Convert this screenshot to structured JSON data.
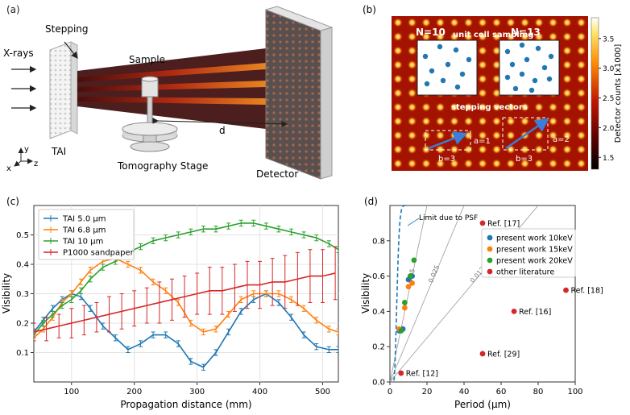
{
  "panel_a": {
    "label": "(a)",
    "labels": {
      "stepping": "Stepping",
      "xrays": "X-rays",
      "sample": "Sample",
      "tai": "TAI",
      "d": "d",
      "stage": "Tomography Stage",
      "detector": "Detector",
      "axis_x": "x",
      "axis_y": "y",
      "axis_z": "z"
    }
  },
  "panel_b": {
    "label": "(b)",
    "n10": "N=10",
    "n13": "N=13",
    "unit_cell": "unit cell sampling",
    "stepping_vectors": "stepping vectors",
    "a1": "a=1",
    "a2": "a=2",
    "b3_left": "b=3",
    "b3_right": "b=3",
    "colorbar": {
      "label": "Detector counts [x1000]",
      "ticks": [
        "3.5",
        "3.0",
        "2.5",
        "2.0",
        "1.5"
      ],
      "tick_values": [
        3.5,
        3.0,
        2.5,
        2.0,
        1.5
      ],
      "range": [
        1.3,
        3.85
      ]
    }
  },
  "chart_data": [
    {
      "panel": "(c)",
      "type": "line",
      "xlabel": "Propagation distance (mm)",
      "ylabel": "Visibility",
      "xlim": [
        40,
        525
      ],
      "ylim": [
        0.0,
        0.6
      ],
      "xticks": [
        100,
        200,
        300,
        400,
        500
      ],
      "yticks": [
        0.1,
        0.2,
        0.3,
        0.4,
        0.5
      ],
      "grid": true,
      "legend": "top-left",
      "series": [
        {
          "name": "TAI 5.0 μm",
          "color": "#1f77b4",
          "x": [
            40,
            55,
            70,
            85,
            100,
            115,
            130,
            150,
            170,
            190,
            210,
            230,
            250,
            270,
            290,
            310,
            330,
            350,
            370,
            390,
            410,
            430,
            450,
            470,
            490,
            510,
            525
          ],
          "y": [
            0.17,
            0.21,
            0.25,
            0.28,
            0.3,
            0.29,
            0.25,
            0.19,
            0.15,
            0.11,
            0.13,
            0.16,
            0.16,
            0.13,
            0.07,
            0.05,
            0.1,
            0.17,
            0.24,
            0.28,
            0.3,
            0.27,
            0.22,
            0.16,
            0.12,
            0.11,
            0.11
          ]
        },
        {
          "name": "TAI 6.8 μm",
          "color": "#ff7f0e",
          "x": [
            40,
            55,
            70,
            85,
            100,
            115,
            130,
            150,
            170,
            190,
            210,
            230,
            250,
            270,
            290,
            310,
            330,
            350,
            370,
            390,
            410,
            430,
            450,
            470,
            490,
            510,
            525
          ],
          "y": [
            0.15,
            0.18,
            0.22,
            0.27,
            0.3,
            0.34,
            0.38,
            0.41,
            0.42,
            0.4,
            0.38,
            0.34,
            0.31,
            0.27,
            0.2,
            0.17,
            0.18,
            0.23,
            0.28,
            0.3,
            0.3,
            0.3,
            0.28,
            0.25,
            0.21,
            0.18,
            0.17
          ]
        },
        {
          "name": "TAI 10 μm",
          "color": "#2ca02c",
          "x": [
            40,
            55,
            70,
            85,
            100,
            115,
            130,
            150,
            170,
            190,
            210,
            230,
            250,
            270,
            290,
            310,
            330,
            350,
            370,
            390,
            410,
            430,
            450,
            470,
            490,
            510,
            525
          ],
          "y": [
            0.16,
            0.2,
            0.23,
            0.26,
            0.28,
            0.31,
            0.35,
            0.39,
            0.41,
            0.44,
            0.46,
            0.48,
            0.49,
            0.5,
            0.51,
            0.52,
            0.52,
            0.53,
            0.54,
            0.54,
            0.53,
            0.52,
            0.51,
            0.5,
            0.49,
            0.47,
            0.45
          ]
        },
        {
          "name": "P1000 sandpaper",
          "color": "#d62728",
          "x": [
            40,
            60,
            80,
            100,
            120,
            140,
            160,
            180,
            200,
            220,
            240,
            260,
            280,
            300,
            320,
            340,
            360,
            380,
            400,
            420,
            440,
            460,
            480,
            500,
            520
          ],
          "y": [
            0.17,
            0.18,
            0.19,
            0.2,
            0.21,
            0.22,
            0.23,
            0.24,
            0.25,
            0.26,
            0.27,
            0.28,
            0.29,
            0.3,
            0.31,
            0.31,
            0.32,
            0.33,
            0.33,
            0.34,
            0.34,
            0.35,
            0.36,
            0.36,
            0.37
          ],
          "err": [
            0.03,
            0.04,
            0.04,
            0.05,
            0.05,
            0.05,
            0.06,
            0.06,
            0.06,
            0.06,
            0.07,
            0.07,
            0.07,
            0.07,
            0.08,
            0.08,
            0.08,
            0.08,
            0.08,
            0.08,
            0.09,
            0.09,
            0.09,
            0.09,
            0.09
          ]
        }
      ]
    },
    {
      "panel": "(d)",
      "type": "scatter",
      "xlabel": "Period (μm)",
      "ylabel": "Visibility",
      "xlim": [
        0,
        100
      ],
      "ylim": [
        0.0,
        1.0
      ],
      "xticks": [
        0,
        20,
        40,
        60,
        80,
        100
      ],
      "xtick_labels": [
        "0",
        "20",
        "40",
        "60",
        "80",
        "100"
      ],
      "yticks": [
        0.0,
        0.2,
        0.4,
        0.6,
        0.8
      ],
      "ytick_labels": [
        "0.0",
        "0.2",
        "0.4",
        "0.6",
        "0.8"
      ],
      "legend": "center-right",
      "psf_label": "Limit due to PSF",
      "slope_lines": [
        {
          "label": "0.05",
          "slope": 0.05
        },
        {
          "label": "0.025",
          "slope": 0.025
        },
        {
          "label": "0.0125",
          "slope": 0.0125
        }
      ],
      "series": [
        {
          "name": "present work 10keV",
          "color": "#1f77b4",
          "points": [
            [
              5,
              0.29
            ],
            [
              7,
              0.3
            ],
            [
              10,
              0.58
            ],
            [
              12,
              0.6
            ]
          ]
        },
        {
          "name": "present work 15keV",
          "color": "#ff7f0e",
          "points": [
            [
              5,
              0.3
            ],
            [
              8,
              0.42
            ],
            [
              10,
              0.54
            ],
            [
              12,
              0.56
            ]
          ]
        },
        {
          "name": "present work 20keV",
          "color": "#2ca02c",
          "points": [
            [
              6,
              0.29
            ],
            [
              8,
              0.45
            ],
            [
              11,
              0.6
            ],
            [
              13,
              0.69
            ]
          ]
        },
        {
          "name": "other literature",
          "color": "#d62728",
          "points": [
            [
              50,
              0.9
            ],
            [
              95,
              0.52
            ],
            [
              67,
              0.4
            ],
            [
              50,
              0.16
            ],
            [
              6,
              0.05
            ]
          ]
        }
      ],
      "annotations": [
        {
          "text": "Ref. [17]",
          "x": 50,
          "y": 0.9
        },
        {
          "text": "Ref. [18]",
          "x": 95,
          "y": 0.52
        },
        {
          "text": "Ref. [16]",
          "x": 67,
          "y": 0.4
        },
        {
          "text": "Ref. [29]",
          "x": 50,
          "y": 0.16
        },
        {
          "text": "Ref. [12]",
          "x": 6,
          "y": 0.05
        }
      ]
    }
  ]
}
